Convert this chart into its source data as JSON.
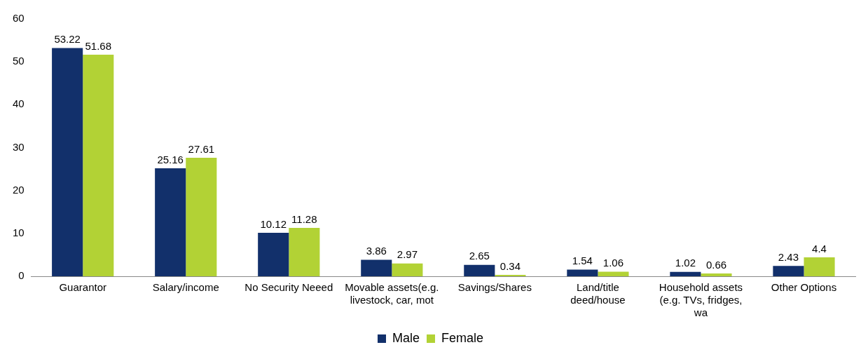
{
  "chart_data": {
    "type": "bar",
    "categories": [
      "Guarantor",
      "Salary/income",
      "No Security Neeed",
      "Movable assets(e.g. livestock, car, mot",
      "Savings/Shares",
      "Land/title deed/house",
      "Household assets (e.g. TVs, fridges, wa",
      "Other Options"
    ],
    "series": [
      {
        "name": "Male",
        "color": "#12306b",
        "values": [
          53.22,
          25.16,
          10.12,
          3.86,
          2.65,
          1.54,
          1.02,
          2.43
        ]
      },
      {
        "name": "Female",
        "color": "#b2d235",
        "values": [
          51.68,
          27.61,
          11.28,
          2.97,
          0.34,
          1.06,
          0.66,
          4.4
        ]
      }
    ],
    "ylim": [
      0,
      60
    ],
    "yticks": [
      0,
      10,
      20,
      30,
      40,
      50,
      60
    ],
    "data_labels": true,
    "legend": "bottom"
  }
}
